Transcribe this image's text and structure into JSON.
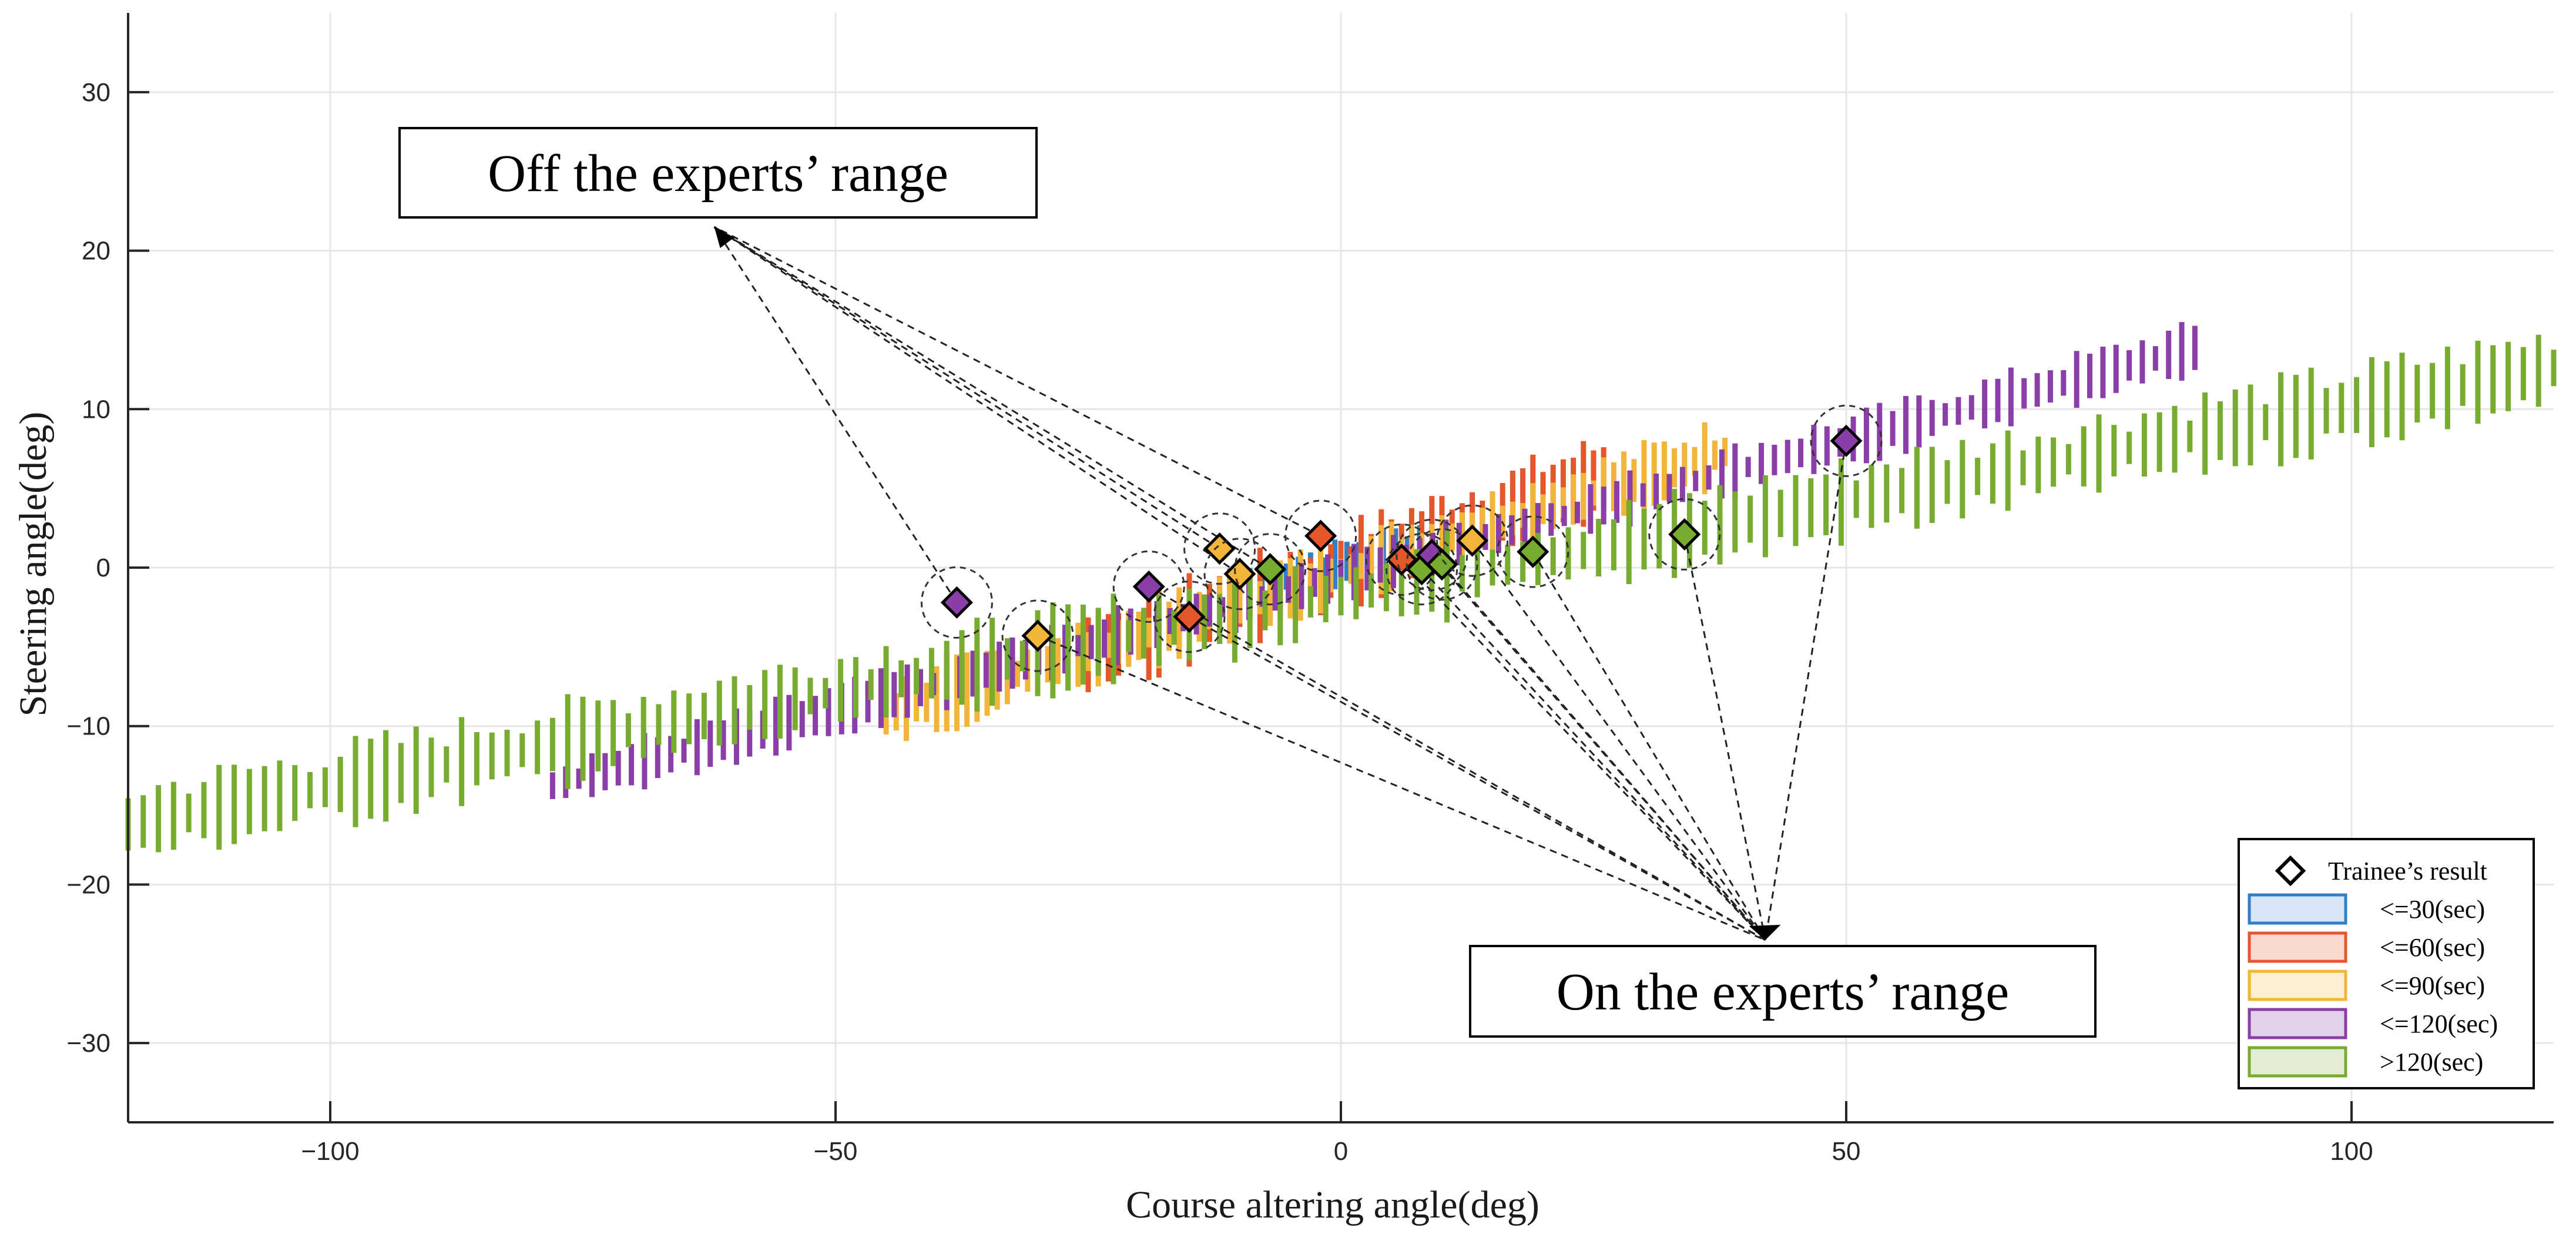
{
  "chart_data": {
    "type": "scatter",
    "title": "",
    "xlabel": "Course altering angle(deg)",
    "ylabel": "Steering angle(deg)",
    "xlim": [
      -120,
      120
    ],
    "ylim": [
      -35,
      35
    ],
    "x_ticks": [
      -100,
      -50,
      0,
      50,
      100
    ],
    "y_ticks": [
      30,
      20,
      10,
      0,
      -10,
      -20,
      -30
    ],
    "grid": true,
    "legend_position": "bottom-right",
    "legend": [
      {
        "label": "Trainee’s result",
        "kind": "marker"
      },
      {
        "label": "<=30(sec)",
        "color": "#2f7fc9",
        "fill": "#d6e6f5"
      },
      {
        "label": "<=60(sec)",
        "color": "#e5562a",
        "fill": "#f8d9cf"
      },
      {
        "label": "<=90(sec)",
        "color": "#f2b53a",
        "fill": "#fcefd2"
      },
      {
        "label": "<=120(sec)",
        "color": "#8a3ea8",
        "fill": "#e3d3ea"
      },
      {
        "label": ">120(sec)",
        "color": "#77ac30",
        "fill": "#e2edd3"
      }
    ],
    "expert_bands": [
      {
        "name": "<=30(sec)",
        "color": "#2f7fc9",
        "x_from": -9,
        "x_to": 10,
        "step": 1.2,
        "slope": 0.16,
        "offset": 0.3,
        "half_height": 0.9
      },
      {
        "name": "<=60(sec)",
        "color": "#e5562a",
        "x_from": -25,
        "x_to": 26,
        "step": 1.0,
        "slope": 0.22,
        "offset": 0.0,
        "half_height": 1.6
      },
      {
        "name": "<=90(sec)",
        "color": "#f2b53a",
        "x_from": -45,
        "x_to": 38,
        "step": 1.0,
        "slope": 0.2,
        "offset": -0.3,
        "half_height": 1.3
      },
      {
        "name": "<=120(sec)",
        "color": "#8a3ea8",
        "x_from": -78,
        "x_to": 85,
        "step": 1.3,
        "slope": 0.17,
        "offset": -0.5,
        "half_height": 1.0
      },
      {
        "name": ">120(sec)",
        "color": "#77ac30",
        "x_from": -120,
        "x_to": 120,
        "step": 1.5,
        "slope": 0.12,
        "offset": -1.8,
        "half_height": 1.6
      }
    ],
    "trainee_results": [
      {
        "x": -38,
        "y": -2.2,
        "group": "<=120(sec)",
        "color": "#8a3ea8",
        "range": "off"
      },
      {
        "x": -30,
        "y": -4.3,
        "group": "<=90(sec)",
        "color": "#f2b53a",
        "range": "on"
      },
      {
        "x": -19,
        "y": -1.2,
        "group": "<=120(sec)",
        "color": "#8a3ea8",
        "range": "on"
      },
      {
        "x": -15,
        "y": -3.1,
        "group": "<=60(sec)",
        "color": "#e5562a",
        "range": "on"
      },
      {
        "x": -12,
        "y": 1.2,
        "group": "<=90(sec)",
        "color": "#f2b53a",
        "range": "off"
      },
      {
        "x": -10,
        "y": -0.4,
        "group": "<=90(sec)",
        "color": "#f2b53a",
        "range": "off"
      },
      {
        "x": -7,
        "y": -0.1,
        "group": ">120(sec)",
        "color": "#77ac30",
        "range": "off"
      },
      {
        "x": -2,
        "y": 2.0,
        "group": "<=60(sec)",
        "color": "#e5562a",
        "range": "off"
      },
      {
        "x": 6,
        "y": 0.5,
        "group": "<=60(sec)",
        "color": "#e5562a",
        "range": "on"
      },
      {
        "x": 8,
        "y": -0.1,
        "group": ">120(sec)",
        "color": "#77ac30",
        "range": "on"
      },
      {
        "x": 9,
        "y": 0.8,
        "group": "<=120(sec)",
        "color": "#8a3ea8",
        "range": "on"
      },
      {
        "x": 10,
        "y": 0.2,
        "group": ">120(sec)",
        "color": "#77ac30",
        "range": "on"
      },
      {
        "x": 13,
        "y": 1.7,
        "group": "<=90(sec)",
        "color": "#f2b53a",
        "range": "on"
      },
      {
        "x": 19,
        "y": 1.0,
        "group": ">120(sec)",
        "color": "#77ac30",
        "range": "on"
      },
      {
        "x": 34,
        "y": 2.1,
        "group": ">120(sec)",
        "color": "#77ac30",
        "range": "on"
      },
      {
        "x": 50,
        "y": 8.0,
        "group": "<=120(sec)",
        "color": "#8a3ea8",
        "range": "on"
      }
    ],
    "annotations": [
      {
        "text": "Off the experts’ range",
        "arrow_target": [
          -62,
          21.5
        ]
      },
      {
        "text": "On the experts’ range",
        "arrow_target": [
          42,
          -23.5
        ]
      }
    ]
  }
}
